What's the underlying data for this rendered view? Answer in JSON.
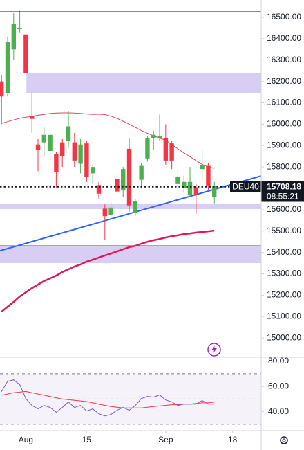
{
  "chart_data": {
    "type": "candlestick",
    "symbol": "DEU40",
    "up_color": "#4caf50",
    "down_color": "#f23645",
    "open": [
      16200,
      16145,
      16350,
      16445,
      16420,
      16040,
      15905,
      15915,
      15875,
      15860,
      15915,
      15920,
      15915,
      15815,
      15910,
      15770,
      15715,
      15605,
      15575,
      15745,
      15690,
      15885,
      15585,
      15740,
      15840,
      15935,
      15935,
      15935,
      15910,
      15720,
      15700,
      15670,
      15705,
      15790,
      15805,
      15660
    ],
    "high": [
      16230,
      16410,
      16520,
      16530,
      16430,
      16145,
      15930,
      15985,
      15960,
      15870,
      15930,
      16060,
      15960,
      15930,
      15920,
      15810,
      15730,
      15625,
      15640,
      15770,
      15800,
      15935,
      15650,
      15820,
      15945,
      15970,
      16045,
      16000,
      15920,
      15790,
      15760,
      15800,
      15720,
      15880,
      15820,
      15730
    ],
    "low": [
      16000,
      16130,
      16300,
      16430,
      16240,
      15960,
      15780,
      15850,
      15830,
      15700,
      15800,
      15890,
      15800,
      15770,
      15730,
      15720,
      15650,
      15460,
      15560,
      15680,
      15660,
      15590,
      15570,
      15700,
      15825,
      15880,
      15920,
      15810,
      15790,
      15690,
      15680,
      15660,
      15580,
      15730,
      15690,
      15630
    ],
    "close": [
      16130,
      16385,
      16470,
      16450,
      16240,
      16025,
      15880,
      15950,
      15950,
      15775,
      15850,
      15990,
      15830,
      15905,
      15755,
      15800,
      15675,
      15570,
      15610,
      15685,
      15790,
      15620,
      15640,
      15805,
      15935,
      15950,
      15945,
      15830,
      15830,
      15755,
      15730,
      15730,
      15670,
      15810,
      15710,
      15710
    ],
    "xlim": [
      -0.25,
      42.7
    ],
    "xticks": [
      {
        "value": 4,
        "label": "Aug"
      },
      {
        "value": 14,
        "label": "15"
      },
      {
        "value": 27,
        "label": "Sep"
      },
      {
        "value": 38,
        "label": "18"
      }
    ],
    "ylim": [
      14913,
      16581
    ],
    "yticks": [
      {
        "value": 15000,
        "label": "15000.00"
      },
      {
        "value": 15100,
        "label": "15100.00"
      },
      {
        "value": 15200,
        "label": "15200.00"
      },
      {
        "value": 15300,
        "label": "15300.00"
      },
      {
        "value": 15400,
        "label": "15400.00"
      },
      {
        "value": 15500,
        "label": "15500.00"
      },
      {
        "value": 15600,
        "label": "15600.00"
      },
      {
        "value": 15700,
        "label": "15700.00"
      },
      {
        "value": 15800,
        "label": "15800.00"
      },
      {
        "value": 15900,
        "label": "15900.00"
      },
      {
        "value": 16000,
        "label": "16000.00"
      },
      {
        "value": 16100,
        "label": "16100.00"
      },
      {
        "value": 16200,
        "label": "16200.00"
      },
      {
        "value": 16300,
        "label": "16300.00"
      },
      {
        "value": 16400,
        "label": "16400.00"
      },
      {
        "value": 16500,
        "label": "16500.00"
      }
    ],
    "overlays": [
      {
        "color": "#e0435a",
        "width": 1,
        "values": [
          16004,
          16012,
          16020,
          16028,
          16033,
          16037,
          16042,
          16046,
          16050,
          16052,
          16053,
          16053,
          16052,
          16050,
          16048,
          16046,
          16047,
          16045,
          16038,
          16027,
          16014,
          16000,
          15985,
          15970,
          15958,
          15946,
          15935,
          15925,
          15905,
          15885,
          15866,
          15848,
          15830,
          15812,
          15800,
          15794
        ]
      },
      {
        "color": "#e0185a",
        "width": 2.5,
        "values": [
          15123,
          15146,
          15169,
          15194,
          15214,
          15233,
          15250,
          15266,
          15279,
          15292,
          15308,
          15321,
          15334,
          15344,
          15357,
          15366,
          15376,
          15386,
          15395,
          15405,
          15415,
          15425,
          15431,
          15441,
          15450,
          15457,
          15463,
          15470,
          15476,
          15480,
          15486,
          15489,
          15493,
          15496,
          15499,
          15502
        ]
      }
    ],
    "trendline": {
      "color": "#2962ff",
      "x": [
        -0.25,
        42.7
      ],
      "y": [
        15408,
        15758
      ]
    },
    "zones": [
      {
        "color": "#d1c4f0",
        "x_start": 4.1,
        "y": [
          16144,
          16241
        ]
      },
      {
        "color": "#d1c4f0",
        "x_start": -0.25,
        "y": [
          15603,
          15629
        ]
      },
      {
        "color": "#d1c4f0",
        "x_start": -0.25,
        "y": [
          15350,
          15431
        ]
      }
    ],
    "last_price": {
      "value": 15708.18,
      "countdown": "08:55:21"
    },
    "rsi": {
      "color": "#7e57c2",
      "ma_color": "#f23645",
      "ylim": [
        25,
        82
      ],
      "yticks": [
        {
          "value": 80,
          "label": "80.00"
        },
        {
          "value": 60,
          "label": "60.00"
        },
        {
          "value": 40,
          "label": "40.00"
        }
      ],
      "levels": [
        70,
        50,
        30
      ],
      "values": [
        55.9,
        64.1,
        65.2,
        61.4,
        50.4,
        44.9,
        42.2,
        44.9,
        43.3,
        39.5,
        43.3,
        47.7,
        43.3,
        44.9,
        40.5,
        42.2,
        38.4,
        36.7,
        37.8,
        41.1,
        43.3,
        41.1,
        44.9,
        50.4,
        52.1,
        51.5,
        53.2,
        49.3,
        47.7,
        44.9,
        46.0,
        46.0,
        46.0,
        48.8,
        46.0,
        46.0
      ],
      "ma_values": [
        53,
        54,
        55,
        55.5,
        56,
        55,
        54,
        53,
        52,
        51,
        50,
        49.5,
        49,
        48.5,
        48,
        47,
        46,
        45,
        44,
        43.5,
        43,
        43,
        43,
        43,
        43.5,
        44,
        44.5,
        45,
        45.5,
        45.5,
        46,
        46,
        46.5,
        47,
        47,
        47.5
      ]
    }
  }
}
